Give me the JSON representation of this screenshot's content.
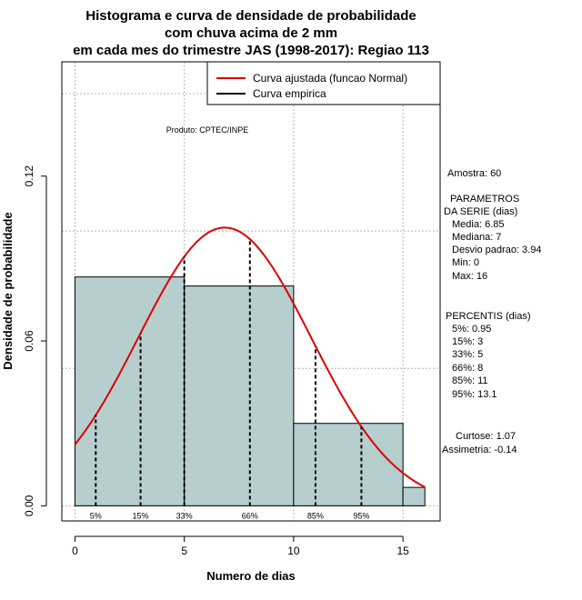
{
  "chart_data": {
    "type": "bar",
    "title_lines": [
      "Histograma e curva de densidade de probabilidade",
      "com chuva acima de 2 mm",
      "em cada mes do trimestre JAS (1998-2017): Regiao 113"
    ],
    "xlabel": "Numero de dias",
    "ylabel": "Densidade de probabilidade",
    "xlim": [
      -0.6,
      16.7
    ],
    "ylim": [
      -0.0055,
      0.1616
    ],
    "x_ticks": [
      {
        "value": 0,
        "label": "0"
      },
      {
        "value": 5,
        "label": "5"
      },
      {
        "value": 10,
        "label": "10"
      },
      {
        "value": 15,
        "label": "15"
      }
    ],
    "y_ticks": [
      {
        "value": 0.0,
        "label": "0.00"
      },
      {
        "value": 0.06,
        "label": "0.06"
      },
      {
        "value": 0.12,
        "label": "0.12"
      }
    ],
    "grid_x": [
      0,
      5,
      10,
      15
    ],
    "grid_y": [
      0.0,
      0.05,
      0.1,
      0.15
    ],
    "bins": [
      {
        "from": 0,
        "to": 5,
        "density": 0.0833
      },
      {
        "from": 5,
        "to": 10,
        "density": 0.08
      },
      {
        "from": 10,
        "to": 15,
        "density": 0.03
      },
      {
        "from": 15,
        "to": 16,
        "density": 0.0067
      }
    ],
    "normal_curve": {
      "mean": 6.85,
      "sd": 3.94,
      "from": 0,
      "to": 16
    },
    "percentile_lines": [
      {
        "label": "5%",
        "x": 0.95
      },
      {
        "label": "15%",
        "x": 3
      },
      {
        "label": "33%",
        "x": 5
      },
      {
        "label": "66%",
        "x": 8
      },
      {
        "label": "85%",
        "x": 11
      },
      {
        "label": "95%",
        "x": 13.1
      }
    ],
    "legend": {
      "position": "top-right",
      "entries": [
        {
          "label": "Curva ajustada (funcao Normal)",
          "color": "#dd0000"
        },
        {
          "label": "Curva empirica",
          "color": "#000000"
        }
      ]
    },
    "annotation": "Produto: CPTEC/INPE",
    "colors": {
      "bar_fill": "#b7cece",
      "curve": "#dd0000",
      "grid": "#b4b4b4"
    }
  },
  "stats": {
    "amostra": "Amostra: 60",
    "param_header_1": "PARAMETROS",
    "param_header_2": "DA SERIE (dias)",
    "params": [
      "Media: 6.85",
      "Mediana: 7",
      "Desvio padrao: 3.94",
      "Min: 0",
      "Max: 16"
    ],
    "percentis_header": "PERCENTIS (dias)",
    "percentis": [
      "5%: 0.95",
      "15%: 3",
      "33%: 5",
      "66%: 8",
      "85%: 11",
      "95%: 13.1"
    ],
    "curtose": "Curtose: 1.07",
    "assimetria": "Assimetria: -0.14"
  }
}
